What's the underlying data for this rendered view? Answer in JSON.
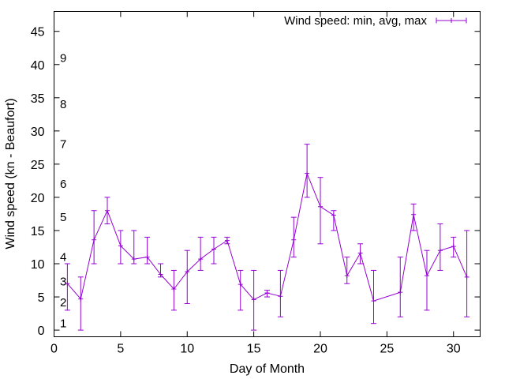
{
  "chart_data": {
    "type": "line",
    "xlabel": "Day of Month",
    "ylabel": "Wind speed (kn - Beaufort)",
    "xlim": [
      0,
      32
    ],
    "ylim": [
      -1,
      48
    ],
    "xticks": [
      0,
      5,
      10,
      15,
      20,
      25,
      30
    ],
    "yticks": [
      0,
      5,
      10,
      15,
      20,
      25,
      30,
      35,
      40,
      45
    ],
    "grid": false,
    "legend_position": "top-right",
    "series": [
      {
        "name": "Wind speed: min, avg, max",
        "color": "#9400d3",
        "points": [
          {
            "x": 1,
            "min": 3,
            "avg": 7,
            "max": 10
          },
          {
            "x": 2,
            "min": 0,
            "avg": 4.7,
            "max": 8
          },
          {
            "x": 3,
            "min": 10,
            "avg": 13.6,
            "max": 18
          },
          {
            "x": 4,
            "min": 16,
            "avg": 18,
            "max": 20
          },
          {
            "x": 5,
            "min": 10,
            "avg": 12.7,
            "max": 15
          },
          {
            "x": 6,
            "min": 10,
            "avg": 10.7,
            "max": 15
          },
          {
            "x": 7,
            "min": 10,
            "avg": 11,
            "max": 14
          },
          {
            "x": 8,
            "min": 8,
            "avg": 8.4,
            "max": 10
          },
          {
            "x": 9,
            "min": 3,
            "avg": 6.2,
            "max": 9
          },
          {
            "x": 10,
            "min": 4,
            "avg": 8.8,
            "max": 12
          },
          {
            "x": 11,
            "min": 9,
            "avg": 10.7,
            "max": 14
          },
          {
            "x": 12,
            "min": 10,
            "avg": 12.2,
            "max": 14
          },
          {
            "x": 13,
            "min": 13,
            "avg": 13.5,
            "max": 14
          },
          {
            "x": 14,
            "min": 3,
            "avg": 6.9,
            "max": 9
          },
          {
            "x": 15,
            "min": 0,
            "avg": 4.6,
            "max": 9
          },
          {
            "x": 16,
            "min": 5,
            "avg": 5.6,
            "max": 6
          },
          {
            "x": 17,
            "min": 2,
            "avg": 5.1,
            "max": 9
          },
          {
            "x": 18,
            "min": 11,
            "avg": 13.6,
            "max": 17
          },
          {
            "x": 19,
            "min": 20,
            "avg": 23.6,
            "max": 28
          },
          {
            "x": 20,
            "min": 13,
            "avg": 18.6,
            "max": 23
          },
          {
            "x": 21,
            "min": 15,
            "avg": 17.3,
            "max": 18
          },
          {
            "x": 22,
            "min": 7,
            "avg": 8.2,
            "max": 11
          },
          {
            "x": 23,
            "min": 10,
            "avg": 11.6,
            "max": 13
          },
          {
            "x": 24,
            "min": 1,
            "avg": 4.4,
            "max": 9
          },
          {
            "x": 26,
            "min": 2,
            "avg": 5.7,
            "max": 11
          },
          {
            "x": 27,
            "min": 15,
            "avg": 17.4,
            "max": 19
          },
          {
            "x": 28,
            "min": 3,
            "avg": 8.2,
            "max": 12
          },
          {
            "x": 29,
            "min": 9,
            "avg": 12,
            "max": 16
          },
          {
            "x": 30,
            "min": 11,
            "avg": 12.6,
            "max": 14
          },
          {
            "x": 31,
            "min": 2,
            "avg": 8,
            "max": 15
          }
        ]
      }
    ],
    "beaufort_labels": [
      {
        "label": "1",
        "y": 1
      },
      {
        "label": "2",
        "y": 4.2
      },
      {
        "label": "3",
        "y": 7.3
      },
      {
        "label": "4",
        "y": 11
      },
      {
        "label": "5",
        "y": 17
      },
      {
        "label": "6",
        "y": 22
      },
      {
        "label": "7",
        "y": 28
      },
      {
        "label": "8",
        "y": 34
      },
      {
        "label": "9",
        "y": 41
      }
    ]
  }
}
